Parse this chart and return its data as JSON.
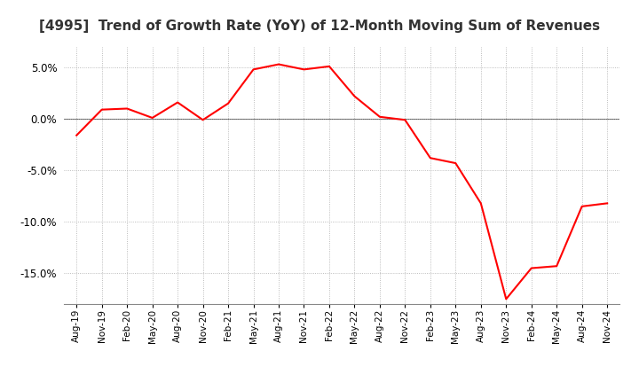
{
  "title": "[4995]  Trend of Growth Rate (YoY) of 12-Month Moving Sum of Revenues",
  "title_fontsize": 11,
  "line_color": "#FF0000",
  "background_color": "#FFFFFF",
  "grid_color": "#AAAAAA",
  "ylim": [
    -0.18,
    0.07
  ],
  "yticks": [
    0.05,
    0.0,
    -0.05,
    -0.1,
    -0.15
  ],
  "x_labels": [
    "Aug-19",
    "Nov-19",
    "Feb-20",
    "May-20",
    "Aug-20",
    "Nov-20",
    "Feb-21",
    "May-21",
    "Aug-21",
    "Nov-21",
    "Feb-22",
    "May-22",
    "Aug-22",
    "Nov-22",
    "Feb-23",
    "May-23",
    "Aug-23",
    "Nov-23",
    "Feb-24",
    "May-24",
    "Aug-24",
    "Nov-24"
  ],
  "y_values": [
    -0.016,
    0.009,
    0.01,
    0.001,
    0.016,
    -0.001,
    0.015,
    0.048,
    0.053,
    0.048,
    0.051,
    0.022,
    0.002,
    -0.001,
    -0.038,
    -0.043,
    -0.082,
    -0.175,
    -0.145,
    -0.143,
    -0.085,
    -0.082
  ]
}
